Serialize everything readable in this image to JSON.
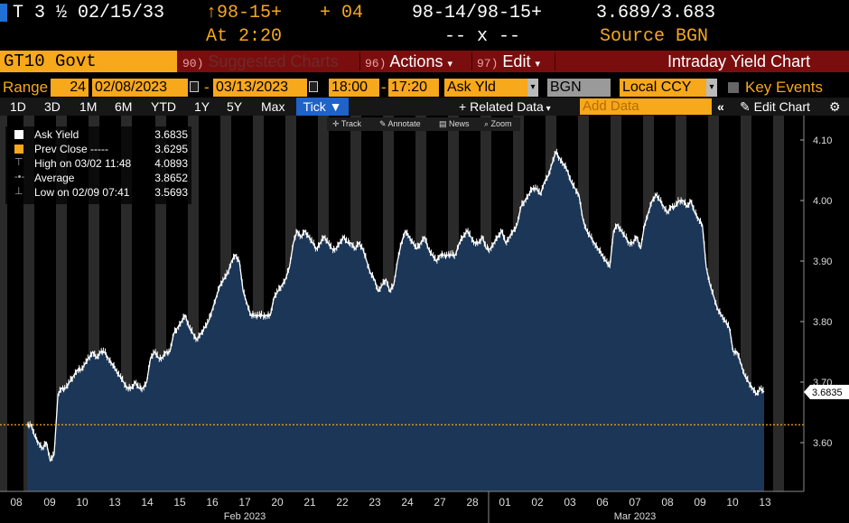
{
  "header": {
    "ticker": "T 3 ½ 02/15/33",
    "price": "↑98-15+",
    "change": "+ 04",
    "bid_ask": "98-14/98-15+",
    "yields": "3.689/3.683",
    "time": "At 2:20",
    "size": "-- x --",
    "source": "Source BGN"
  },
  "menu": {
    "security": "GT10 Govt",
    "suggested": {
      "num": "90)",
      "label": "Suggested Charts"
    },
    "actions": {
      "num": "96)",
      "label": "Actions"
    },
    "edit": {
      "num": "97)",
      "label": "Edit"
    },
    "title": "Intraday Yield Chart"
  },
  "params": {
    "range_label": "Range",
    "range_days": "24",
    "start_date": "02/08/2023",
    "dash": "-",
    "end_date": "03/13/2023",
    "start_time": "18:00",
    "end_time": "17:20",
    "field": "Ask Yld",
    "source": "BGN",
    "currency": "Local CCY",
    "key_events": "Key Events"
  },
  "toolbar": {
    "periods": [
      "1D",
      "3D",
      "1M",
      "6M",
      "YTD",
      "1Y",
      "5Y",
      "Max"
    ],
    "tick": "Tick",
    "related": "Related Data",
    "add_data_placeholder": "Add Data",
    "edit_chart": "Edit Chart"
  },
  "subtools": {
    "track": "Track",
    "annotate": "Annotate",
    "news": "News",
    "zoom": "Zoom"
  },
  "legend": {
    "ask_yield": {
      "label": "Ask Yield",
      "value": "3.6835"
    },
    "prev_close": {
      "label": "Prev Close -----",
      "value": "3.6295"
    },
    "high": {
      "label": "High on 03/02 11:48",
      "value": "4.0893"
    },
    "average": {
      "label": "Average",
      "value": "3.8652"
    },
    "low": {
      "label": "Low on 02/09 07:41",
      "value": "3.5693"
    }
  },
  "colors": {
    "accent": "#f7a81b",
    "menu_bg": "#7a0e0e",
    "area": "#1b3656",
    "line": "#ffffff",
    "tick_btn": "#1f62c8"
  },
  "chart_data": {
    "type": "area",
    "title": "",
    "xlabel": "",
    "ylabel": "",
    "ylim": [
      3.52,
      4.13
    ],
    "y_ticks": [
      "4.10",
      "4.00",
      "3.90",
      "3.80",
      "3.70",
      "3.60"
    ],
    "y_tick_values": [
      4.1,
      4.0,
      3.9,
      3.8,
      3.7,
      3.6
    ],
    "x_tick_labels": [
      "08",
      "09",
      "10",
      "13",
      "14",
      "15",
      "16",
      "17",
      "20",
      "21",
      "22",
      "23",
      "24",
      "27",
      "28",
      "01",
      "02",
      "03",
      "06",
      "07",
      "08",
      "09",
      "10",
      "13"
    ],
    "month_labels": [
      "Feb 2023",
      "Mar 2023"
    ],
    "prev_close": 3.6295,
    "last_value_label": "3.6835",
    "series": [
      {
        "values": [
          3.63,
          3.63,
          3.61,
          3.6,
          3.59,
          3.6,
          3.57,
          3.58,
          3.68,
          3.69,
          3.69,
          3.7,
          3.71,
          3.72,
          3.72,
          3.73,
          3.74,
          3.75,
          3.74,
          3.75,
          3.75,
          3.74,
          3.73,
          3.72,
          3.71,
          3.7,
          3.69,
          3.69,
          3.7,
          3.69,
          3.69,
          3.7,
          3.74,
          3.75,
          3.74,
          3.74,
          3.75,
          3.75,
          3.78,
          3.79,
          3.8,
          3.81,
          3.79,
          3.78,
          3.77,
          3.78,
          3.79,
          3.8,
          3.82,
          3.84,
          3.86,
          3.87,
          3.88,
          3.9,
          3.91,
          3.9,
          3.85,
          3.83,
          3.81,
          3.81,
          3.81,
          3.81,
          3.81,
          3.81,
          3.84,
          3.85,
          3.86,
          3.87,
          3.89,
          3.93,
          3.95,
          3.94,
          3.95,
          3.94,
          3.93,
          3.92,
          3.93,
          3.94,
          3.93,
          3.92,
          3.92,
          3.93,
          3.94,
          3.93,
          3.93,
          3.92,
          3.93,
          3.92,
          3.9,
          3.88,
          3.87,
          3.85,
          3.86,
          3.87,
          3.85,
          3.86,
          3.9,
          3.93,
          3.95,
          3.94,
          3.93,
          3.92,
          3.93,
          3.94,
          3.92,
          3.91,
          3.9,
          3.91,
          3.91,
          3.91,
          3.91,
          3.91,
          3.93,
          3.94,
          3.95,
          3.94,
          3.93,
          3.93,
          3.94,
          3.92,
          3.92,
          3.93,
          3.94,
          3.95,
          3.93,
          3.94,
          3.95,
          3.96,
          3.99,
          4.0,
          4.01,
          4.02,
          4.02,
          4.01,
          4.03,
          4.04,
          4.06,
          4.08,
          4.07,
          4.06,
          4.05,
          4.03,
          4.02,
          4.01,
          3.97,
          3.95,
          3.94,
          3.93,
          3.92,
          3.91,
          3.9,
          3.89,
          3.95,
          3.96,
          3.95,
          3.94,
          3.93,
          3.93,
          3.94,
          3.92,
          3.96,
          3.98,
          4.0,
          4.01,
          4.0,
          3.99,
          3.98,
          3.99,
          3.99,
          4.0,
          4.0,
          3.99,
          4.0,
          3.98,
          3.97,
          3.96,
          3.89,
          3.86,
          3.84,
          3.82,
          3.81,
          3.8,
          3.79,
          3.75,
          3.75,
          3.73,
          3.71,
          3.7,
          3.69,
          3.68,
          3.69,
          3.6835
        ]
      }
    ]
  }
}
